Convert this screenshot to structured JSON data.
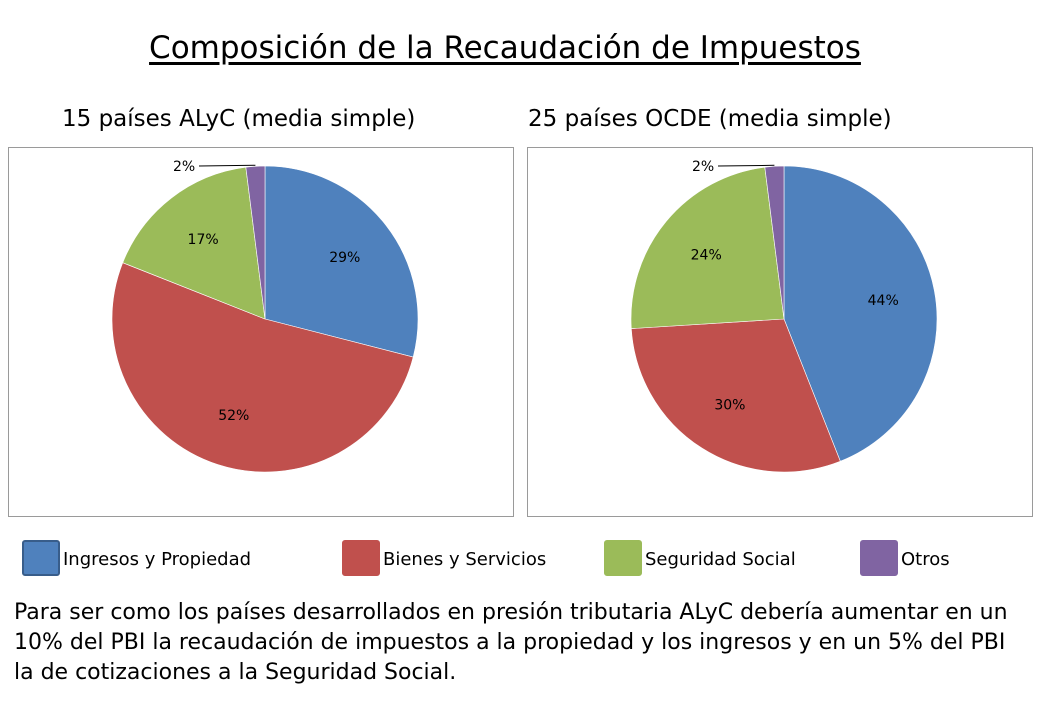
{
  "page": {
    "title": "Composición de la Recaudación de Impuestos",
    "footer": "Para ser como los países desarrollados en presión tributaria ALyC debería aumentar en un 10% del PBI la recaudación de impuestos a la propiedad y los ingresos y en un 5% del PBI la de cotizaciones a la Seguridad Social."
  },
  "chart_data": [
    {
      "type": "pie",
      "title": "15 países ALyC (media simple)",
      "categories": [
        "Ingresos y Propiedad",
        "Bienes y Servicios",
        "Seguridad Social",
        "Otros"
      ],
      "values": [
        29,
        52,
        17,
        2
      ],
      "data_labels": [
        "29%",
        "52%",
        "17%",
        "2%"
      ],
      "colors": [
        "#4F81BD",
        "#C0504D",
        "#9BBB59",
        "#8064A2"
      ],
      "start": "12 o'clock",
      "direction": "clockwise"
    },
    {
      "type": "pie",
      "title": "25 países OCDE (media simple)",
      "categories": [
        "Ingresos y Propiedad",
        "Bienes y Servicios",
        "Seguridad Social",
        "Otros"
      ],
      "values": [
        44,
        30,
        24,
        2
      ],
      "data_labels": [
        "44%",
        "30%",
        "24%",
        "2%"
      ],
      "colors": [
        "#4F81BD",
        "#C0504D",
        "#9BBB59",
        "#8064A2"
      ],
      "start": "12 o'clock",
      "direction": "clockwise"
    }
  ],
  "legend": {
    "placement": "bottom",
    "items": [
      {
        "label": "Ingresos y Propiedad",
        "color": "#4F81BD",
        "border": "#385D8A"
      },
      {
        "label": "Bienes y Servicios",
        "color": "#C0504D",
        "border": "#C0504D"
      },
      {
        "label": "Seguridad Social",
        "color": "#9BBB59",
        "border": "#9BBB59"
      },
      {
        "label": "Otros",
        "color": "#8064A2",
        "border": "#8064A2"
      }
    ]
  }
}
